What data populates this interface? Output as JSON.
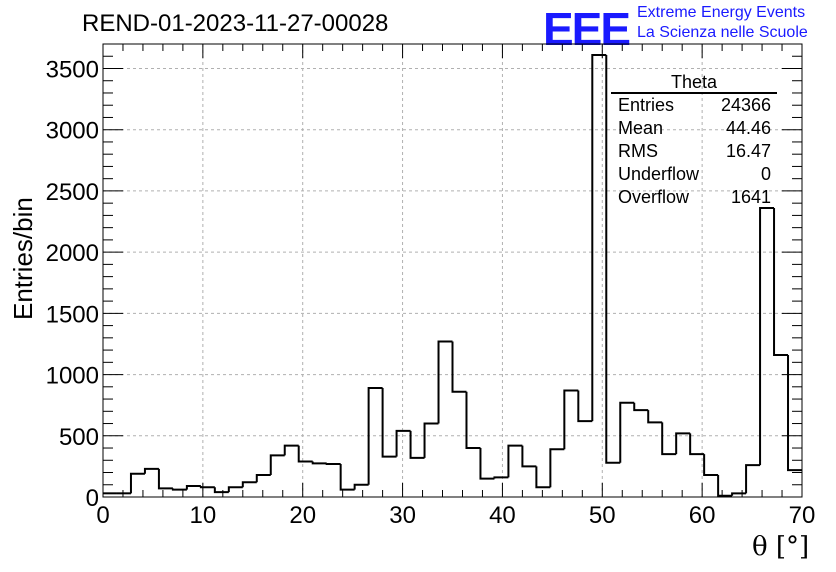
{
  "header": {
    "title": "REND-01-2023-11-27-00028",
    "logo_text": "EEE",
    "logo_line1": "Extreme Energy Events",
    "logo_line2": "La Scienza nelle Scuole"
  },
  "stats_box": {
    "title": "Theta",
    "rows": [
      {
        "label": "Entries",
        "value": "24366"
      },
      {
        "label": "Mean",
        "value": "44.46"
      },
      {
        "label": "RMS",
        "value": "16.47"
      },
      {
        "label": "Underflow",
        "value": "0"
      },
      {
        "label": "Overflow",
        "value": "1641"
      }
    ]
  },
  "colors": {
    "logo": "#1a1aff",
    "line": "#000000",
    "grid": "#b0b0b0"
  },
  "chart_data": {
    "type": "bar",
    "histogram_style": "step",
    "title": "REND-01-2023-11-27-00028",
    "xlabel": "θ [°]",
    "ylabel": "Entries/bin",
    "xlim": [
      0,
      70
    ],
    "ylim": [
      0,
      3700
    ],
    "bin_width": 1.4,
    "x_ticks": [
      0,
      10,
      20,
      30,
      40,
      50,
      60,
      70
    ],
    "y_ticks": [
      0,
      500,
      1000,
      1500,
      2000,
      2500,
      3000,
      3500
    ],
    "grid": true,
    "legend": "top-right stats box",
    "values": [
      30,
      30,
      190,
      230,
      70,
      60,
      90,
      80,
      40,
      80,
      120,
      180,
      340,
      420,
      290,
      275,
      270,
      60,
      100,
      890,
      330,
      540,
      320,
      600,
      1270,
      860,
      400,
      150,
      160,
      420,
      250,
      80,
      390,
      870,
      620,
      3610,
      280,
      770,
      710,
      610,
      350,
      520,
      350,
      180,
      10,
      30,
      260,
      2360,
      1160,
      220
    ]
  }
}
